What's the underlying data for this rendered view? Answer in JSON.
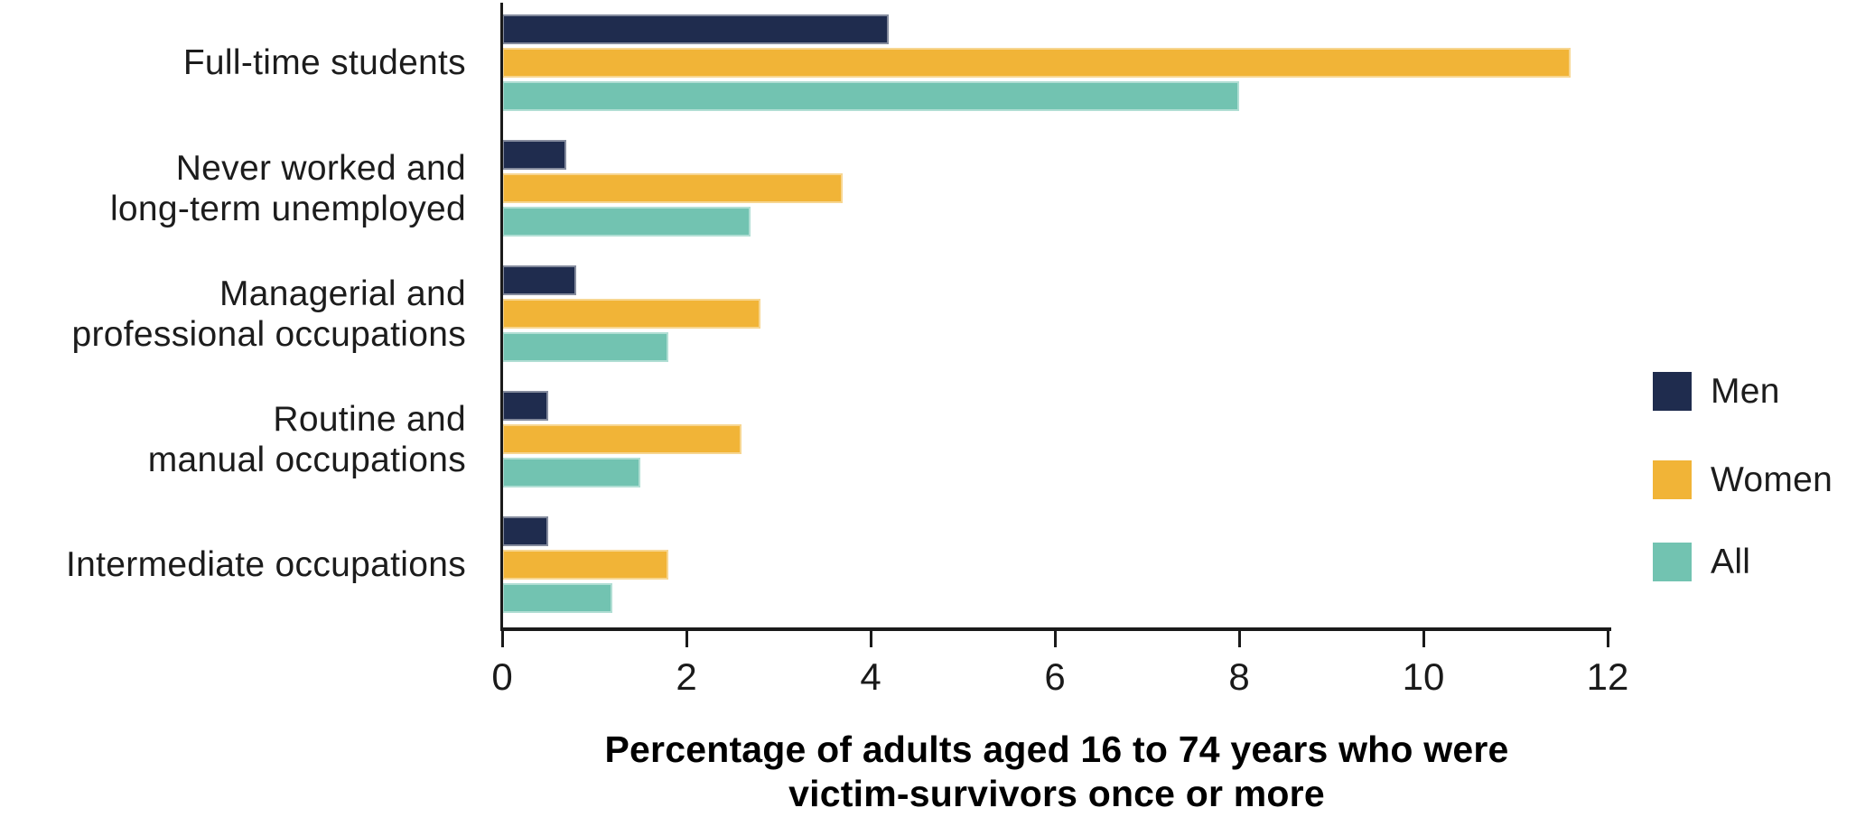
{
  "chart_data": {
    "type": "bar",
    "orientation": "horizontal",
    "categories": [
      "Full-time students",
      "Never worked and long-term unemployed",
      "Managerial and professional occupations",
      "Routine and manual occupations",
      "Intermediate occupations"
    ],
    "category_lines": [
      [
        "Full-time students"
      ],
      [
        "Never worked and",
        "long-term unemployed"
      ],
      [
        "Managerial and",
        "professional occupations"
      ],
      [
        "Routine and",
        "manual occupations"
      ],
      [
        "Intermediate occupations"
      ]
    ],
    "series": [
      {
        "name": "Men",
        "color": "#1F2C4E",
        "values": [
          4.2,
          0.7,
          0.8,
          0.5,
          0.5
        ]
      },
      {
        "name": "Women",
        "color": "#F1B437",
        "values": [
          11.6,
          3.7,
          2.8,
          2.6,
          1.8
        ]
      },
      {
        "name": "All",
        "color": "#72C3B1",
        "values": [
          8.0,
          2.7,
          1.8,
          1.5,
          1.2
        ]
      }
    ],
    "xlabel": "Percentage of adults aged 16 to 74 years who were victim-survivors once or more",
    "xlabel_lines": [
      "Percentage of adults aged 16 to 74 years who were",
      "victim-survivors once or more"
    ],
    "xlim": [
      0,
      12
    ],
    "xticks": [
      0,
      2,
      4,
      6,
      8,
      10,
      12
    ],
    "grid": false,
    "legend_position": "right",
    "legend_entries": [
      "Men",
      "Women",
      "All"
    ]
  },
  "colors": {
    "axis": "#1a1a1a",
    "text": "#1c1c1c",
    "background": "#ffffff",
    "men": "#1F2C4E",
    "women": "#F1B437",
    "all": "#72C3B1"
  }
}
